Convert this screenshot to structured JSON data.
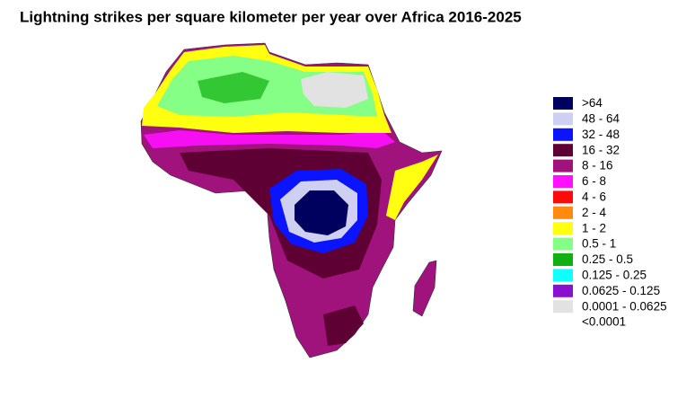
{
  "title": "Lightning strikes per square kilometer per year over Africa 2016-2025",
  "legend": [
    {
      "label": ">64",
      "color": "#00005e"
    },
    {
      "label": "48 - 64",
      "color": "#cfcff2"
    },
    {
      "label": "32 - 48",
      "color": "#0a14ff"
    },
    {
      "label": "16 - 32",
      "color": "#5e0033"
    },
    {
      "label": "8 - 16",
      "color": "#a0127c"
    },
    {
      "label": "6 - 8",
      "color": "#ff10ff"
    },
    {
      "label": "4 - 6",
      "color": "#ff0a0a"
    },
    {
      "label": "2 - 4",
      "color": "#ff8a10"
    },
    {
      "label": "1 - 2",
      "color": "#ffff10"
    },
    {
      "label": "0.5 - 1",
      "color": "#86ff86"
    },
    {
      "label": "0.25 - 0.5",
      "color": "#10b010"
    },
    {
      "label": "0.125 - 0.25",
      "color": "#10ffff"
    },
    {
      "label": "0.0625 - 0.125",
      "color": "#8a10d0"
    },
    {
      "label": "0.0001 - 0.0625",
      "color": "#e2e2e2"
    },
    {
      "label": "<0.0001",
      "color": "#ffffff"
    }
  ]
}
